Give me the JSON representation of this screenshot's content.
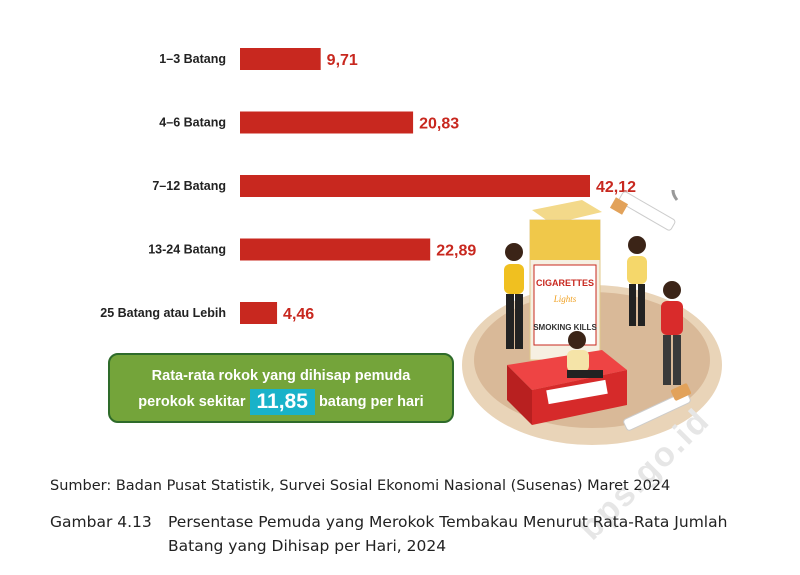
{
  "chart_data": {
    "type": "bar",
    "orientation": "horizontal",
    "categories": [
      "1–3 Batang",
      "4–6 Batang",
      "7–12 Batang",
      "13-24 Batang",
      "25 Batang atau Lebih"
    ],
    "values": [
      9.71,
      20.83,
      42.12,
      22.89,
      4.46
    ],
    "value_labels": [
      "9,71",
      "20,83",
      "42,12",
      "22,89",
      "4,46"
    ],
    "bar_color": "#c8281f",
    "value_color": "#c8281f",
    "xlim": [
      0,
      42.12
    ]
  },
  "summary": {
    "line1": "Rata-rata rokok yang dihisap pemuda",
    "line2_prefix": "perokok sekitar",
    "highlight": "11,85",
    "line2_suffix": "batang per hari",
    "bg_color": "#74a43a",
    "highlight_color": "#19b2c9"
  },
  "illustration": {
    "pack_brand": "CIGARETTES",
    "pack_subtitle": "Lights",
    "pack_warning": "SMOKING KILLS"
  },
  "watermark": "bps.go.id",
  "source": "Sumber: Badan Pusat Statistik, Survei Sosial Ekonomi Nasional (Susenas) Maret 2024",
  "caption": {
    "number": "Gambar 4.13",
    "line1": "Persentase Pemuda yang Merokok Tembakau Menurut Rata-Rata Jumlah",
    "line2": "Batang yang Dihisap per Hari, 2024"
  }
}
